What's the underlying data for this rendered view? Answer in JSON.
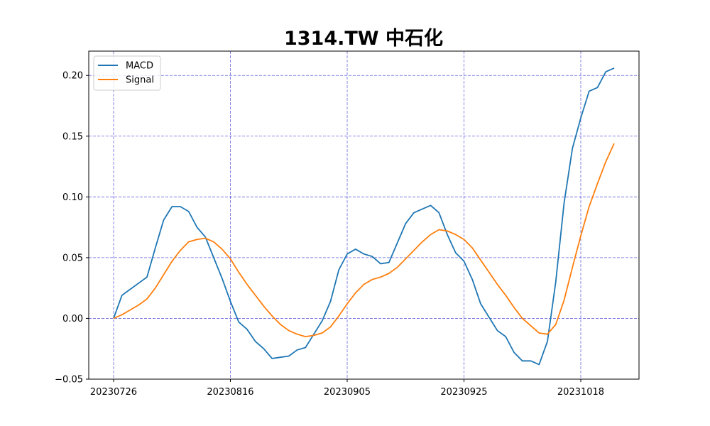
{
  "chart_data": {
    "type": "line",
    "title": "1314.TW 中石化",
    "xlabel": "",
    "ylabel": "",
    "ylim": [
      -0.05,
      0.22
    ],
    "x_tick_labels": [
      "20230726",
      "20230816",
      "20230905",
      "20230925",
      "20231018"
    ],
    "x_tick_index": [
      0,
      14,
      28,
      42,
      56
    ],
    "y_ticks": [
      -0.05,
      0.0,
      0.05,
      0.1,
      0.15,
      0.2
    ],
    "y_tick_labels": [
      "−0.05",
      "0.00",
      "0.05",
      "0.10",
      "0.15",
      "0.20"
    ],
    "grid": true,
    "legend_position": "upper-left",
    "series": [
      {
        "name": "MACD",
        "color": "#1f77b4",
        "values": [
          0.0,
          0.019,
          0.024,
          0.029,
          0.034,
          0.058,
          0.081,
          0.092,
          0.092,
          0.088,
          0.075,
          0.067,
          0.05,
          0.033,
          0.014,
          -0.003,
          -0.009,
          -0.019,
          -0.025,
          -0.033,
          -0.032,
          -0.031,
          -0.026,
          -0.024,
          -0.013,
          -0.002,
          0.014,
          0.04,
          0.053,
          0.057,
          0.053,
          0.051,
          0.045,
          0.046,
          0.062,
          0.078,
          0.087,
          0.09,
          0.093,
          0.087,
          0.069,
          0.054,
          0.047,
          0.032,
          0.012,
          0.001,
          -0.01,
          -0.015,
          -0.028,
          -0.035,
          -0.035,
          -0.038,
          -0.019,
          0.03,
          0.095,
          0.14,
          0.165,
          0.187,
          0.19,
          0.203,
          0.206
        ]
      },
      {
        "name": "Signal",
        "color": "#ff7f0e",
        "values": [
          0.0,
          0.003,
          0.007,
          0.011,
          0.016,
          0.025,
          0.036,
          0.047,
          0.056,
          0.063,
          0.065,
          0.066,
          0.063,
          0.057,
          0.049,
          0.038,
          0.028,
          0.019,
          0.01,
          0.002,
          -0.005,
          -0.01,
          -0.013,
          -0.015,
          -0.014,
          -0.012,
          -0.007,
          0.002,
          0.012,
          0.021,
          0.028,
          0.032,
          0.034,
          0.037,
          0.042,
          0.049,
          0.056,
          0.063,
          0.069,
          0.073,
          0.072,
          0.069,
          0.065,
          0.058,
          0.048,
          0.038,
          0.028,
          0.019,
          0.009,
          0.0,
          -0.006,
          -0.012,
          -0.013,
          -0.005,
          0.015,
          0.042,
          0.068,
          0.092,
          0.111,
          0.129,
          0.144
        ]
      }
    ]
  }
}
